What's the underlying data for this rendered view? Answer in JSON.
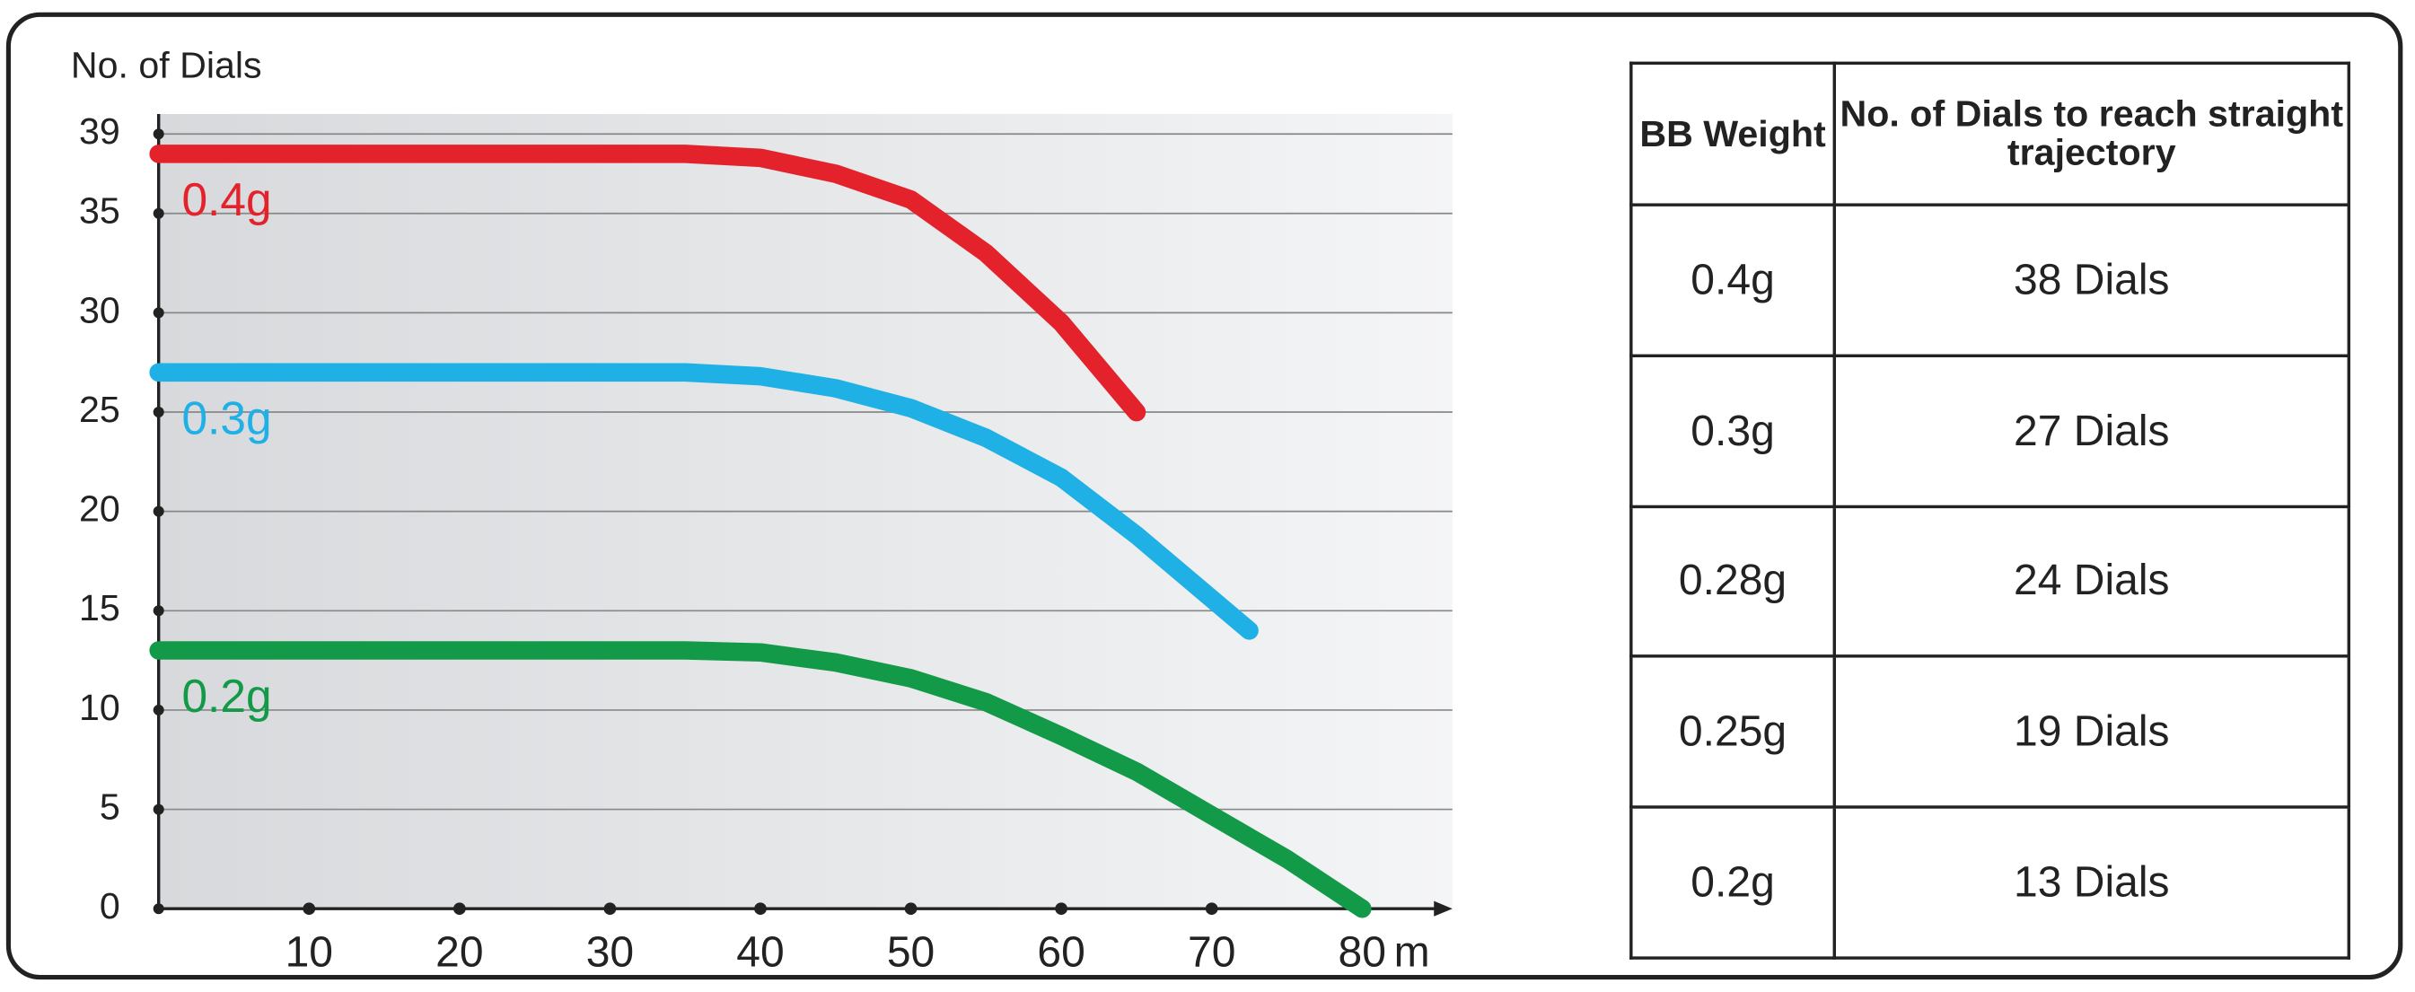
{
  "chart_data": {
    "type": "line",
    "y_label": "No. of Dials",
    "x_label": "m",
    "xlim": [
      0,
      86
    ],
    "ylim": [
      0,
      39
    ],
    "xticks": [
      10,
      20,
      30,
      40,
      50,
      60,
      70,
      80
    ],
    "yticks": [
      0,
      5,
      10,
      15,
      20,
      25,
      30,
      35,
      39
    ],
    "grid": true,
    "series": [
      {
        "name": "0.4g",
        "color": "#e3222b",
        "x": [
          0,
          10,
          20,
          30,
          35,
          40,
          45,
          50,
          55,
          60,
          65
        ],
        "values": [
          38,
          38,
          38,
          38,
          38,
          37.8,
          37,
          35.7,
          33,
          29.5,
          25
        ]
      },
      {
        "name": "0.3g",
        "color": "#1fb0e6",
        "x": [
          0,
          10,
          20,
          30,
          35,
          40,
          45,
          50,
          55,
          60,
          65,
          70,
          72.5
        ],
        "values": [
          27,
          27,
          27,
          27,
          27,
          26.8,
          26.2,
          25.2,
          23.7,
          21.7,
          18.8,
          15.6,
          14
        ]
      },
      {
        "name": "0.2g",
        "color": "#139a48",
        "x": [
          0,
          10,
          20,
          30,
          35,
          40,
          45,
          50,
          55,
          60,
          65,
          70,
          75,
          80
        ],
        "values": [
          13,
          13,
          13,
          13,
          13,
          12.9,
          12.4,
          11.6,
          10.4,
          8.7,
          6.9,
          4.7,
          2.5,
          0
        ]
      }
    ]
  },
  "table": {
    "header": [
      "BB Weight",
      "No. of Dials to reach straight trajectory"
    ],
    "rows": [
      [
        "0.4g",
        "38 Dials"
      ],
      [
        "0.3g",
        "27 Dials"
      ],
      [
        "0.28g",
        "24 Dials"
      ],
      [
        "0.25g",
        "19 Dials"
      ],
      [
        "0.2g",
        "13 Dials"
      ]
    ]
  }
}
